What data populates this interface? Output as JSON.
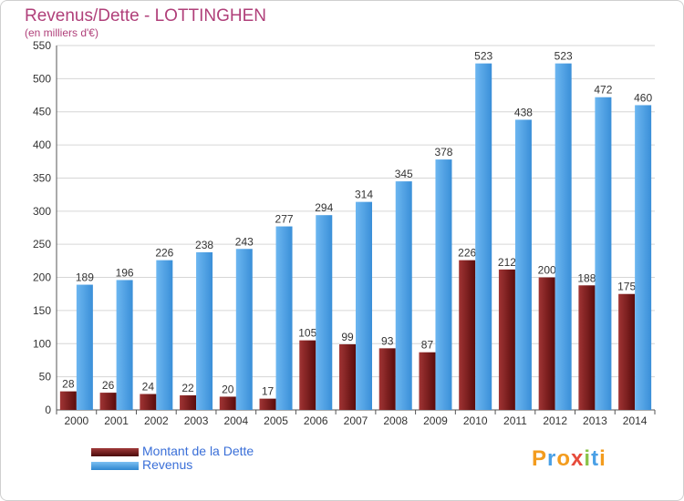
{
  "title": "Revenus/Dette - LOTTINGHEN",
  "subtitle": "(en milliers d'€)",
  "logo_text": "Proxiti",
  "colors": {
    "dette": "#7a1a1a",
    "revenus": "#4aa0e6",
    "title": "#b0407a",
    "legend_text": "#3a6fd8",
    "axis_text": "#333333",
    "grid": "#d6d6d6"
  },
  "chart_data": {
    "type": "bar",
    "title": "Revenus/Dette - LOTTINGHEN",
    "subtitle": "(en milliers d'€)",
    "categories": [
      "2000",
      "2001",
      "2002",
      "2003",
      "2004",
      "2005",
      "2006",
      "2007",
      "2008",
      "2009",
      "2010",
      "2011",
      "2012",
      "2013",
      "2014"
    ],
    "series": [
      {
        "name": "Montant de la Dette",
        "color": "#7a1a1a",
        "values": [
          28,
          26,
          24,
          22,
          20,
          17,
          105,
          99,
          93,
          87,
          226,
          212,
          200,
          188,
          175
        ]
      },
      {
        "name": "Revenus",
        "color": "#4aa0e6",
        "values": [
          189,
          196,
          226,
          238,
          243,
          277,
          294,
          314,
          345,
          378,
          523,
          438,
          523,
          472,
          460
        ]
      }
    ],
    "ylim": [
      0,
      550
    ],
    "yticks": [
      0,
      50,
      100,
      150,
      200,
      250,
      300,
      350,
      400,
      450,
      500,
      550
    ],
    "grid": true,
    "legend": "bottom-left",
    "data_labels": true
  }
}
